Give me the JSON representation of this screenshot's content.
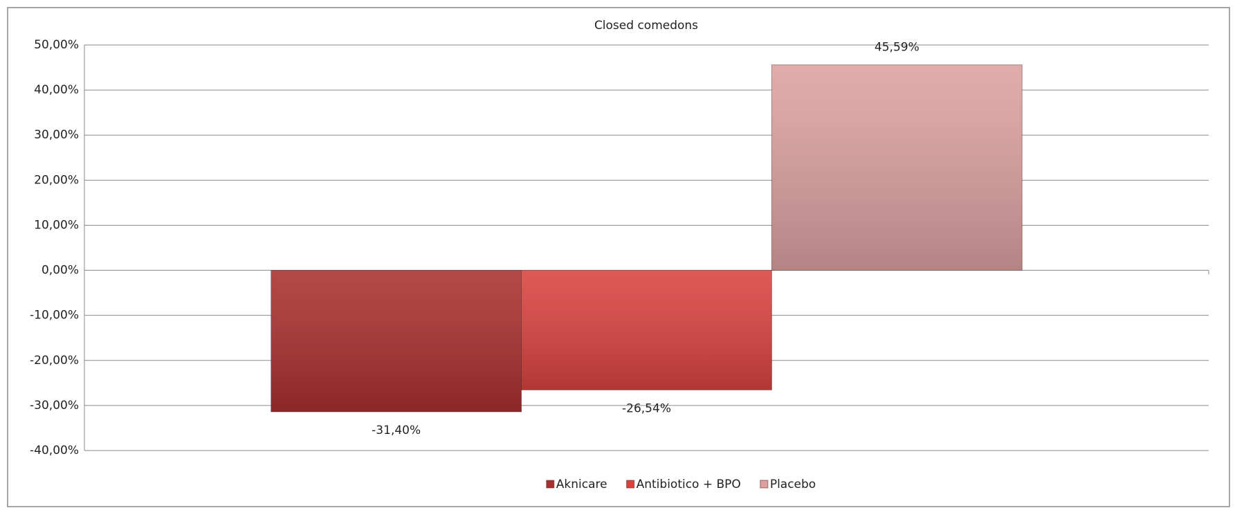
{
  "chart_data": {
    "type": "bar",
    "title": "Closed comedons",
    "categories": [
      null
    ],
    "series": [
      {
        "name": "Aknicare",
        "color": "#a8302f",
        "values": [
          -31.4
        ],
        "value_labels": [
          "-31,40%"
        ]
      },
      {
        "name": "Antibiotico + BPO",
        "color": "#d9433f",
        "values": [
          -26.54
        ],
        "value_labels": [
          "-26,54%"
        ]
      },
      {
        "name": "Placebo",
        "color": "#dca0a0",
        "values": [
          45.59
        ],
        "value_labels": [
          "45,59%"
        ]
      }
    ],
    "ylim": [
      -40,
      50
    ],
    "yticks": [
      {
        "value": -40,
        "label": "-40,00%"
      },
      {
        "value": -30,
        "label": "-30,00%"
      },
      {
        "value": -20,
        "label": "-20,00%"
      },
      {
        "value": -10,
        "label": "-10,00%"
      },
      {
        "value": 0,
        "label": "0,00%"
      },
      {
        "value": 10,
        "label": "10,00%"
      },
      {
        "value": 20,
        "label": "20,00%"
      },
      {
        "value": 30,
        "label": "30,00%"
      },
      {
        "value": 40,
        "label": "40,00%"
      },
      {
        "value": 50,
        "label": "50,00%"
      }
    ],
    "grid": true,
    "legend": "bottom"
  }
}
